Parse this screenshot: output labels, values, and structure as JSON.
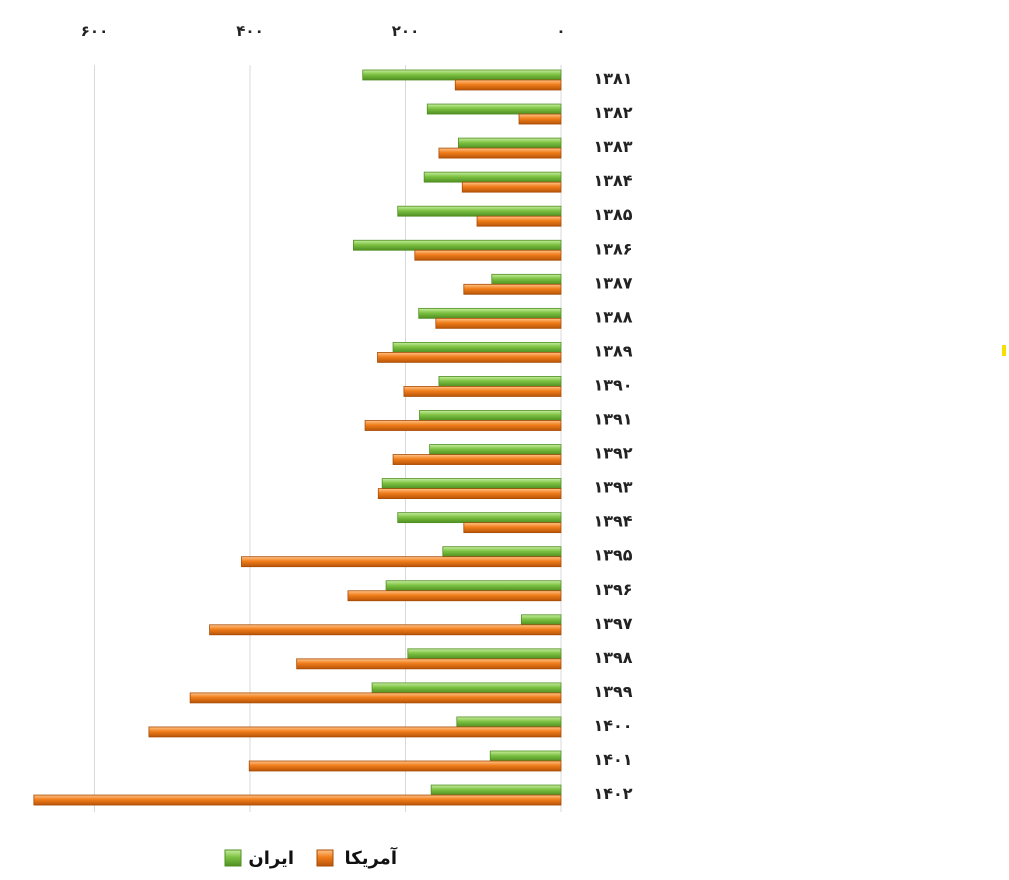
{
  "chart_data": {
    "type": "bar",
    "orientation": "horizontal",
    "x_axis_reversed": true,
    "x_axis_position": "top",
    "xlim": [
      0,
      680
    ],
    "x_ticks": [
      0,
      200,
      400,
      600
    ],
    "x_tick_labels": [
      "۰",
      "۲۰۰",
      "۴۰۰",
      "۶۰۰"
    ],
    "grid": true,
    "legend_position": "bottom",
    "categories": [
      "۱۳۸۱",
      "۱۳۸۲",
      "۱۳۸۳",
      "۱۳۸۴",
      "۱۳۸۵",
      "۱۳۸۶",
      "۱۳۸۷",
      "۱۳۸۸",
      "۱۳۸۹",
      "۱۳۹۰",
      "۱۳۹۱",
      "۱۳۹۲",
      "۱۳۹۳",
      "۱۳۹۴",
      "۱۳۹۵",
      "۱۳۹۶",
      "۱۳۹۷",
      "۱۳۹۸",
      "۱۳۹۹",
      "۱۴۰۰",
      "۱۴۰۱",
      "۱۴۰۲"
    ],
    "series": [
      {
        "name": "ایران",
        "color": "#7dc242",
        "values": [
          255,
          172,
          132,
          176,
          210,
          267,
          89,
          183,
          216,
          157,
          182,
          169,
          230,
          210,
          152,
          225,
          51,
          197,
          243,
          134,
          91,
          167
        ]
      },
      {
        "name": "آمریکا",
        "color": "#f07d1a",
        "values": [
          136,
          54,
          157,
          127,
          108,
          188,
          125,
          161,
          236,
          202,
          252,
          216,
          235,
          125,
          411,
          274,
          452,
          340,
          477,
          530,
          401,
          678
        ]
      }
    ]
  }
}
